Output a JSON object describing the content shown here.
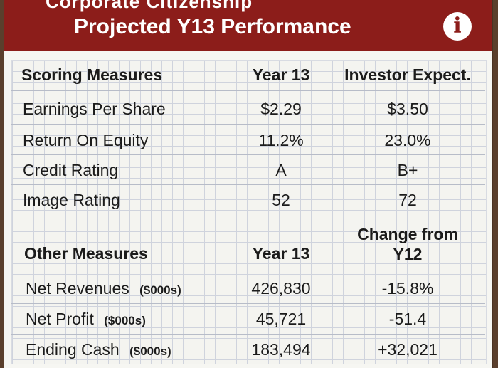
{
  "header": {
    "cut_title": "Corporate Citizenship",
    "title": "Projected Y13 Performance",
    "info_icon_glyph": "i",
    "color": "#8c1d1a"
  },
  "scoring": {
    "headers": [
      "Scoring Measures",
      "Year 13",
      "Investor Expect."
    ],
    "rows": [
      {
        "label": "Earnings Per Share",
        "year13": "$2.29",
        "expect": "$3.50"
      },
      {
        "label": "Return On Equity",
        "year13": "11.2%",
        "expect": "23.0%"
      },
      {
        "label": "Credit Rating",
        "year13": "A",
        "expect": "B+"
      },
      {
        "label": "Image Rating",
        "year13": "52",
        "expect": "72"
      }
    ]
  },
  "other": {
    "headers": [
      "Other Measures",
      "Year 13",
      "Change from",
      "Y12"
    ],
    "rows": [
      {
        "label": "Net Revenues",
        "unit": "($000s)",
        "year13": "426,830",
        "change": "-15.8%"
      },
      {
        "label": "Net Profit",
        "unit": "($000s)",
        "year13": "45,721",
        "change": "-51.4"
      },
      {
        "label": "Ending Cash",
        "unit": "($000s)",
        "year13": "183,494",
        "change": "+32,021"
      }
    ]
  }
}
